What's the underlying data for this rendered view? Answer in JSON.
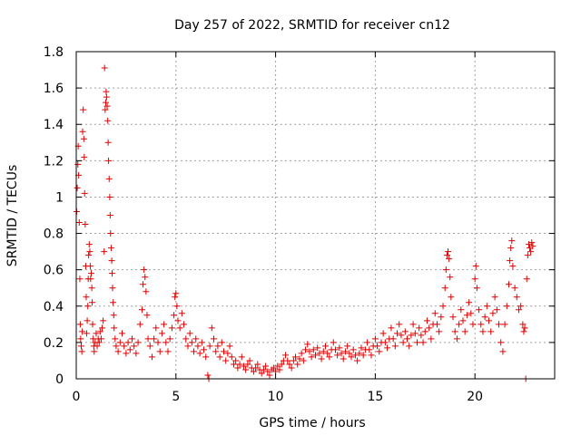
{
  "chart_data": {
    "type": "scatter",
    "title": "Day 257 of 2022, SRMTID for receiver cn12",
    "xlabel": "GPS time / hours",
    "ylabel": "SRMTID / TECUs",
    "xlim": [
      0,
      24
    ],
    "ylim": [
      0,
      1.8
    ],
    "xticks": [
      0,
      5,
      10,
      15,
      20
    ],
    "yticks": [
      0,
      0.2,
      0.4,
      0.6,
      0.8,
      1,
      1.2,
      1.4,
      1.6,
      1.8
    ],
    "ytick_labels": [
      "0",
      "0.2",
      "0.4",
      "0.6",
      "0.8",
      "1",
      "1.2",
      "1.4",
      "1.6",
      "1.8"
    ],
    "grid": true,
    "marker": "plus",
    "color": "#e00000",
    "series": [
      {
        "name": "cn12",
        "points": [
          [
            0.02,
            0.92
          ],
          [
            0.05,
            1.05
          ],
          [
            0.08,
            1.18
          ],
          [
            0.1,
            1.28
          ],
          [
            0.12,
            1.12
          ],
          [
            0.15,
            0.86
          ],
          [
            0.18,
            0.55
          ],
          [
            0.2,
            0.3
          ],
          [
            0.22,
            0.22
          ],
          [
            0.25,
            0.18
          ],
          [
            0.28,
            0.15
          ],
          [
            0.3,
            0.26
          ],
          [
            0.32,
            1.36
          ],
          [
            0.35,
            1.48
          ],
          [
            0.38,
            1.32
          ],
          [
            0.4,
            1.22
          ],
          [
            0.42,
            1.02
          ],
          [
            0.45,
            0.85
          ],
          [
            0.48,
            0.62
          ],
          [
            0.5,
            0.45
          ],
          [
            0.52,
            0.25
          ],
          [
            0.55,
            0.32
          ],
          [
            0.58,
            0.4
          ],
          [
            0.6,
            0.55
          ],
          [
            0.62,
            0.68
          ],
          [
            0.65,
            0.74
          ],
          [
            0.68,
            0.7
          ],
          [
            0.7,
            0.62
          ],
          [
            0.72,
            0.55
          ],
          [
            0.75,
            0.58
          ],
          [
            0.78,
            0.5
          ],
          [
            0.8,
            0.42
          ],
          [
            0.82,
            0.3
          ],
          [
            0.85,
            0.22
          ],
          [
            0.88,
            0.18
          ],
          [
            0.9,
            0.15
          ],
          [
            0.95,
            0.2
          ],
          [
            1.0,
            0.25
          ],
          [
            1.05,
            0.18
          ],
          [
            1.1,
            0.22
          ],
          [
            1.15,
            0.2
          ],
          [
            1.2,
            0.26
          ],
          [
            1.25,
            0.22
          ],
          [
            1.3,
            0.28
          ],
          [
            1.35,
            0.32
          ],
          [
            1.4,
            0.7
          ],
          [
            1.42,
            1.71
          ],
          [
            1.45,
            1.48
          ],
          [
            1.48,
            1.52
          ],
          [
            1.5,
            1.58
          ],
          [
            1.52,
            1.55
          ],
          [
            1.55,
            1.5
          ],
          [
            1.58,
            1.42
          ],
          [
            1.6,
            1.3
          ],
          [
            1.62,
            1.2
          ],
          [
            1.65,
            1.1
          ],
          [
            1.68,
            1.0
          ],
          [
            1.7,
            0.9
          ],
          [
            1.72,
            0.8
          ],
          [
            1.75,
            0.72
          ],
          [
            1.78,
            0.65
          ],
          [
            1.8,
            0.58
          ],
          [
            1.82,
            0.5
          ],
          [
            1.85,
            0.42
          ],
          [
            1.88,
            0.35
          ],
          [
            1.9,
            0.28
          ],
          [
            1.95,
            0.22
          ],
          [
            2.0,
            0.18
          ],
          [
            2.1,
            0.15
          ],
          [
            2.2,
            0.2
          ],
          [
            2.3,
            0.25
          ],
          [
            2.4,
            0.18
          ],
          [
            2.5,
            0.14
          ],
          [
            2.6,
            0.2
          ],
          [
            2.7,
            0.16
          ],
          [
            2.8,
            0.22
          ],
          [
            2.9,
            0.18
          ],
          [
            3.0,
            0.14
          ],
          [
            3.1,
            0.2
          ],
          [
            3.2,
            0.3
          ],
          [
            3.3,
            0.38
          ],
          [
            3.35,
            0.52
          ],
          [
            3.4,
            0.6
          ],
          [
            3.45,
            0.56
          ],
          [
            3.5,
            0.48
          ],
          [
            3.55,
            0.35
          ],
          [
            3.6,
            0.22
          ],
          [
            3.7,
            0.18
          ],
          [
            3.8,
            0.12
          ],
          [
            3.9,
            0.22
          ],
          [
            4.0,
            0.28
          ],
          [
            4.1,
            0.2
          ],
          [
            4.2,
            0.15
          ],
          [
            4.3,
            0.25
          ],
          [
            4.4,
            0.3
          ],
          [
            4.5,
            0.2
          ],
          [
            4.6,
            0.15
          ],
          [
            4.7,
            0.22
          ],
          [
            4.8,
            0.28
          ],
          [
            4.9,
            0.35
          ],
          [
            4.95,
            0.45
          ],
          [
            5.0,
            0.47
          ],
          [
            5.05,
            0.4
          ],
          [
            5.1,
            0.32
          ],
          [
            5.2,
            0.28
          ],
          [
            5.3,
            0.36
          ],
          [
            5.4,
            0.3
          ],
          [
            5.5,
            0.22
          ],
          [
            5.6,
            0.18
          ],
          [
            5.7,
            0.25
          ],
          [
            5.8,
            0.2
          ],
          [
            5.9,
            0.15
          ],
          [
            6.0,
            0.22
          ],
          [
            6.1,
            0.18
          ],
          [
            6.2,
            0.14
          ],
          [
            6.3,
            0.2
          ],
          [
            6.4,
            0.16
          ],
          [
            6.5,
            0.12
          ],
          [
            6.6,
            0.02
          ],
          [
            6.65,
            0.0
          ],
          [
            6.7,
            0.18
          ],
          [
            6.8,
            0.28
          ],
          [
            6.9,
            0.22
          ],
          [
            7.0,
            0.15
          ],
          [
            7.1,
            0.18
          ],
          [
            7.2,
            0.12
          ],
          [
            7.3,
            0.2
          ],
          [
            7.4,
            0.15
          ],
          [
            7.5,
            0.1
          ],
          [
            7.6,
            0.14
          ],
          [
            7.7,
            0.18
          ],
          [
            7.8,
            0.12
          ],
          [
            7.9,
            0.08
          ],
          [
            8.0,
            0.1
          ],
          [
            8.1,
            0.06
          ],
          [
            8.2,
            0.08
          ],
          [
            8.3,
            0.12
          ],
          [
            8.4,
            0.07
          ],
          [
            8.5,
            0.05
          ],
          [
            8.6,
            0.08
          ],
          [
            8.7,
            0.1
          ],
          [
            8.8,
            0.06
          ],
          [
            8.9,
            0.04
          ],
          [
            9.0,
            0.06
          ],
          [
            9.1,
            0.08
          ],
          [
            9.2,
            0.05
          ],
          [
            9.3,
            0.03
          ],
          [
            9.4,
            0.05
          ],
          [
            9.5,
            0.07
          ],
          [
            9.6,
            0.04
          ],
          [
            9.7,
            0.02
          ],
          [
            9.8,
            0.05
          ],
          [
            9.9,
            0.06
          ],
          [
            10.0,
            0.04
          ],
          [
            10.1,
            0.07
          ],
          [
            10.2,
            0.05
          ],
          [
            10.3,
            0.08
          ],
          [
            10.4,
            0.1
          ],
          [
            10.5,
            0.13
          ],
          [
            10.6,
            0.1
          ],
          [
            10.7,
            0.08
          ],
          [
            10.8,
            0.06
          ],
          [
            10.9,
            0.1
          ],
          [
            11.0,
            0.12
          ],
          [
            11.1,
            0.08
          ],
          [
            11.2,
            0.11
          ],
          [
            11.3,
            0.14
          ],
          [
            11.4,
            0.1
          ],
          [
            11.5,
            0.16
          ],
          [
            11.6,
            0.19
          ],
          [
            11.7,
            0.15
          ],
          [
            11.8,
            0.12
          ],
          [
            11.9,
            0.16
          ],
          [
            12.0,
            0.13
          ],
          [
            12.1,
            0.17
          ],
          [
            12.2,
            0.14
          ],
          [
            12.3,
            0.11
          ],
          [
            12.4,
            0.15
          ],
          [
            12.5,
            0.18
          ],
          [
            12.6,
            0.14
          ],
          [
            12.7,
            0.12
          ],
          [
            12.8,
            0.16
          ],
          [
            12.9,
            0.2
          ],
          [
            13.0,
            0.16
          ],
          [
            13.1,
            0.13
          ],
          [
            13.2,
            0.17
          ],
          [
            13.3,
            0.14
          ],
          [
            13.4,
            0.11
          ],
          [
            13.5,
            0.15
          ],
          [
            13.6,
            0.18
          ],
          [
            13.7,
            0.14
          ],
          [
            13.8,
            0.12
          ],
          [
            13.9,
            0.16
          ],
          [
            14.0,
            0.13
          ],
          [
            14.1,
            0.1
          ],
          [
            14.2,
            0.14
          ],
          [
            14.3,
            0.17
          ],
          [
            14.4,
            0.13
          ],
          [
            14.5,
            0.16
          ],
          [
            14.6,
            0.2
          ],
          [
            14.7,
            0.16
          ],
          [
            14.8,
            0.13
          ],
          [
            14.9,
            0.18
          ],
          [
            15.0,
            0.22
          ],
          [
            15.1,
            0.18
          ],
          [
            15.2,
            0.15
          ],
          [
            15.3,
            0.2
          ],
          [
            15.4,
            0.25
          ],
          [
            15.5,
            0.2
          ],
          [
            15.6,
            0.17
          ],
          [
            15.7,
            0.22
          ],
          [
            15.8,
            0.28
          ],
          [
            15.9,
            0.22
          ],
          [
            16.0,
            0.18
          ],
          [
            16.1,
            0.25
          ],
          [
            16.2,
            0.3
          ],
          [
            16.3,
            0.24
          ],
          [
            16.4,
            0.2
          ],
          [
            16.5,
            0.26
          ],
          [
            16.6,
            0.22
          ],
          [
            16.7,
            0.18
          ],
          [
            16.8,
            0.24
          ],
          [
            16.9,
            0.3
          ],
          [
            17.0,
            0.25
          ],
          [
            17.1,
            0.2
          ],
          [
            17.2,
            0.28
          ],
          [
            17.3,
            0.24
          ],
          [
            17.4,
            0.2
          ],
          [
            17.5,
            0.26
          ],
          [
            17.6,
            0.32
          ],
          [
            17.7,
            0.28
          ],
          [
            17.8,
            0.22
          ],
          [
            17.9,
            0.3
          ],
          [
            18.0,
            0.36
          ],
          [
            18.1,
            0.3
          ],
          [
            18.2,
            0.26
          ],
          [
            18.3,
            0.34
          ],
          [
            18.4,
            0.4
          ],
          [
            18.5,
            0.5
          ],
          [
            18.55,
            0.6
          ],
          [
            18.6,
            0.68
          ],
          [
            18.65,
            0.7
          ],
          [
            18.7,
            0.66
          ],
          [
            18.75,
            0.56
          ],
          [
            18.8,
            0.45
          ],
          [
            18.9,
            0.34
          ],
          [
            19.0,
            0.26
          ],
          [
            19.1,
            0.22
          ],
          [
            19.2,
            0.3
          ],
          [
            19.3,
            0.38
          ],
          [
            19.4,
            0.32
          ],
          [
            19.5,
            0.26
          ],
          [
            19.6,
            0.35
          ],
          [
            19.7,
            0.42
          ],
          [
            19.8,
            0.36
          ],
          [
            19.9,
            0.3
          ],
          [
            20.0,
            0.55
          ],
          [
            20.05,
            0.62
          ],
          [
            20.1,
            0.5
          ],
          [
            20.2,
            0.38
          ],
          [
            20.3,
            0.3
          ],
          [
            20.4,
            0.26
          ],
          [
            20.5,
            0.34
          ],
          [
            20.6,
            0.4
          ],
          [
            20.7,
            0.32
          ],
          [
            20.8,
            0.26
          ],
          [
            20.9,
            0.36
          ],
          [
            21.0,
            0.45
          ],
          [
            21.1,
            0.38
          ],
          [
            21.2,
            0.3
          ],
          [
            21.3,
            0.2
          ],
          [
            21.4,
            0.15
          ],
          [
            21.5,
            0.3
          ],
          [
            21.6,
            0.4
          ],
          [
            21.7,
            0.52
          ],
          [
            21.75,
            0.65
          ],
          [
            21.8,
            0.72
          ],
          [
            21.85,
            0.76
          ],
          [
            21.9,
            0.62
          ],
          [
            22.0,
            0.5
          ],
          [
            22.1,
            0.45
          ],
          [
            22.2,
            0.38
          ],
          [
            22.3,
            0.4
          ],
          [
            22.4,
            0.3
          ],
          [
            22.45,
            0.26
          ],
          [
            22.5,
            0.28
          ],
          [
            22.55,
            0.0
          ],
          [
            22.6,
            0.55
          ],
          [
            22.65,
            0.68
          ],
          [
            22.7,
            0.74
          ],
          [
            22.75,
            0.72
          ],
          [
            22.8,
            0.7
          ],
          [
            22.85,
            0.75
          ],
          [
            22.9,
            0.73
          ]
        ]
      }
    ]
  }
}
